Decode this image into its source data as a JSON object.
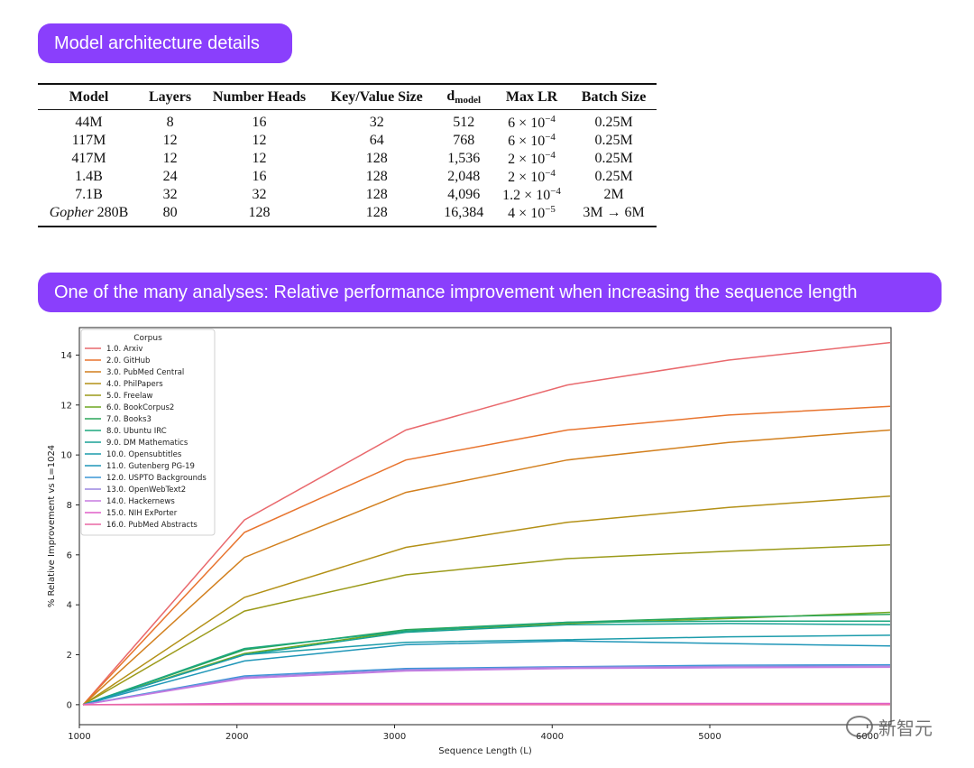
{
  "headers": {
    "architecture": "Model architecture details",
    "analysis": "One of the many analyses: Relative performance improvement when increasing the sequence length"
  },
  "table": {
    "columns": {
      "model": "Model",
      "layers": "Layers",
      "heads": "Number Heads",
      "kv": "Key/Value Size",
      "dmodel_main": "d",
      "dmodel_sub": "model",
      "maxlr": "Max LR",
      "batch": "Batch Size"
    },
    "rows": [
      {
        "model_italic": "",
        "model": "44M",
        "layers": "8",
        "heads": "16",
        "kv": "32",
        "dmodel": "512",
        "lr_base": "6 × 10",
        "lr_exp": "−4",
        "batch": "0.25M"
      },
      {
        "model_italic": "",
        "model": "117M",
        "layers": "12",
        "heads": "12",
        "kv": "64",
        "dmodel": "768",
        "lr_base": "6 × 10",
        "lr_exp": "−4",
        "batch": "0.25M"
      },
      {
        "model_italic": "",
        "model": "417M",
        "layers": "12",
        "heads": "12",
        "kv": "128",
        "dmodel": "1,536",
        "lr_base": "2 × 10",
        "lr_exp": "−4",
        "batch": "0.25M"
      },
      {
        "model_italic": "",
        "model": "1.4B",
        "layers": "24",
        "heads": "16",
        "kv": "128",
        "dmodel": "2,048",
        "lr_base": "2 × 10",
        "lr_exp": "−4",
        "batch": "0.25M"
      },
      {
        "model_italic": "",
        "model": "7.1B",
        "layers": "32",
        "heads": "32",
        "kv": "128",
        "dmodel": "4,096",
        "lr_base": "1.2 × 10",
        "lr_exp": "−4",
        "batch": "2M"
      },
      {
        "model_italic": "Gopher",
        "model": " 280B",
        "layers": "80",
        "heads": "128",
        "kv": "128",
        "dmodel": "16,384",
        "lr_base": "4 × 10",
        "lr_exp": "−5",
        "batch": "3M → 6M"
      }
    ]
  },
  "watermark": "新智元",
  "chart_data": {
    "type": "line",
    "title": "",
    "xlabel": "Sequence Length (L)",
    "ylabel": "% Relative Improvement vs L=1024",
    "xlim": [
      1000,
      6150
    ],
    "ylim": [
      -0.8,
      15.1
    ],
    "xticks": [
      "1000",
      "2000",
      "3000",
      "4000",
      "5000",
      "6000"
    ],
    "yticks": [
      "0",
      "2",
      "4",
      "6",
      "8",
      "10",
      "12",
      "14"
    ],
    "x": [
      1024,
      2048,
      3072,
      4096,
      5120,
      6144
    ],
    "legend_title": "Corpus",
    "legend_position": "upper-left",
    "series": [
      {
        "name": "1.0. Arxiv",
        "end_label": "1.0",
        "color": "#e9696d",
        "values": [
          0,
          7.4,
          11.0,
          12.8,
          13.8,
          14.5
        ]
      },
      {
        "name": "2.0. GitHub",
        "end_label": "2.0",
        "color": "#e8742e",
        "values": [
          0,
          6.9,
          9.8,
          11.0,
          11.6,
          11.95
        ]
      },
      {
        "name": "3.0. PubMed Central",
        "end_label": "3.0",
        "color": "#d27f1d",
        "values": [
          0,
          5.9,
          8.5,
          9.8,
          10.5,
          11.0
        ]
      },
      {
        "name": "4.0. PhilPapers",
        "end_label": "4.0",
        "color": "#b39016",
        "values": [
          0,
          4.3,
          6.3,
          7.3,
          7.9,
          8.35
        ]
      },
      {
        "name": "5.0. Freelaw",
        "end_label": "5.0",
        "color": "#9b9a19",
        "values": [
          0,
          3.75,
          5.2,
          5.85,
          6.15,
          6.4
        ]
      },
      {
        "name": "6.0. BookCorpus2",
        "end_label": "6.0",
        "color": "#6fa720",
        "values": [
          0,
          2.05,
          2.95,
          3.25,
          3.45,
          3.7
        ]
      },
      {
        "name": "7.0. Books3",
        "end_label": "7.0",
        "color": "#2aa65a",
        "values": [
          0,
          2.2,
          3.0,
          3.3,
          3.5,
          3.62
        ]
      },
      {
        "name": "8.0. Ubuntu IRC",
        "end_label": "8.0",
        "color": "#1ba77e",
        "values": [
          0,
          2.25,
          2.95,
          3.3,
          3.35,
          3.35
        ]
      },
      {
        "name": "9.0. DM Mathematics",
        "end_label": "9.0",
        "color": "#18a195",
        "values": [
          0,
          2.0,
          2.9,
          3.2,
          3.25,
          3.2
        ]
      },
      {
        "name": "10.0. Opensubtitles",
        "end_label": "10.0",
        "color": "#1c9cab",
        "values": [
          0,
          2.0,
          2.5,
          2.6,
          2.72,
          2.78
        ]
      },
      {
        "name": "11.0. Gutenberg PG-19",
        "end_label": "11.0",
        "color": "#1f96b8",
        "values": [
          0,
          1.75,
          2.4,
          2.55,
          2.45,
          2.35
        ]
      },
      {
        "name": "12.0. USPTO Backgrounds",
        "end_label": "12.0",
        "color": "#3c95d6",
        "values": [
          0,
          1.15,
          1.45,
          1.52,
          1.58,
          1.6
        ]
      },
      {
        "name": "13.0. OpenWebText2",
        "end_label": "13.0",
        "color": "#9a86e0",
        "values": [
          0,
          1.1,
          1.4,
          1.5,
          1.53,
          1.55
        ]
      },
      {
        "name": "14.0. Hackernews",
        "end_label": "14.0",
        "color": "#c77ae0",
        "values": [
          0,
          1.05,
          1.35,
          1.45,
          1.48,
          1.5
        ]
      },
      {
        "name": "15.0. NIH ExPorter",
        "end_label": "15.0",
        "color": "#e05ec8",
        "values": [
          0,
          0.05,
          0.05,
          0.05,
          0.05,
          0.05
        ]
      },
      {
        "name": "16.0. PubMed Abstracts",
        "end_label": "16.0",
        "color": "#ea67a3",
        "values": [
          0,
          0.0,
          0.0,
          0.0,
          0.0,
          0.0
        ]
      }
    ]
  }
}
